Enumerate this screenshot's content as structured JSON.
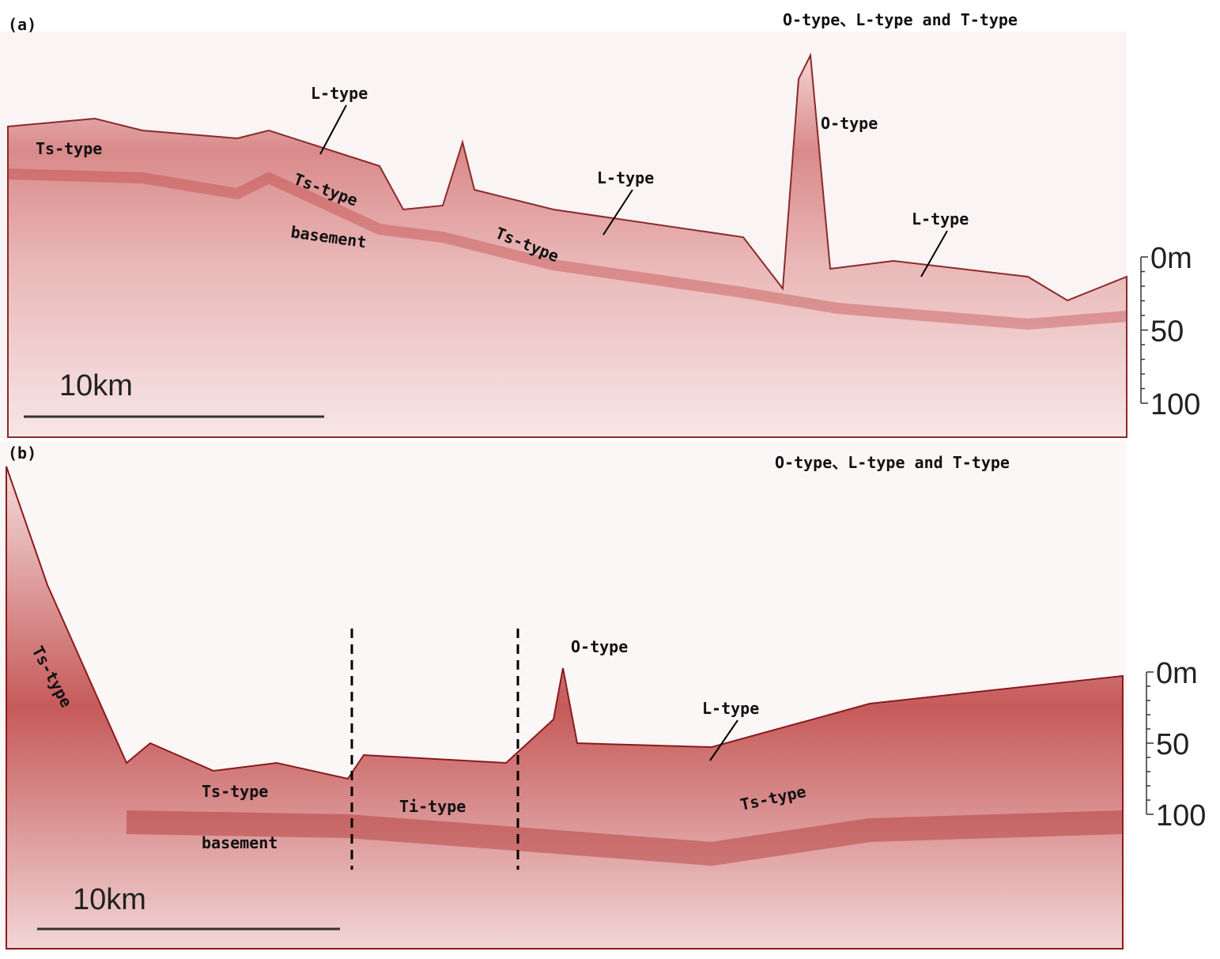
{
  "panels": [
    {
      "label": "(a)",
      "title": "O-type、L-type and T-type",
      "annotations": [
        "Ts-type",
        "L-type",
        "Ts-type",
        "basement",
        "L-type",
        "Ts-type",
        "O-type",
        "L-type"
      ],
      "scale_bar": "10km",
      "depth_scale": [
        "0m",
        "50",
        "100"
      ]
    },
    {
      "label": "(b)",
      "title": "O-type、L-type and T-type",
      "annotations": [
        "Ts-type",
        "Ts-type",
        "basement",
        "Ti-type",
        "O-type",
        "L-type",
        "Ts-type"
      ],
      "scale_bar": "10km",
      "depth_scale": [
        "0m",
        "50",
        "100"
      ]
    }
  ]
}
